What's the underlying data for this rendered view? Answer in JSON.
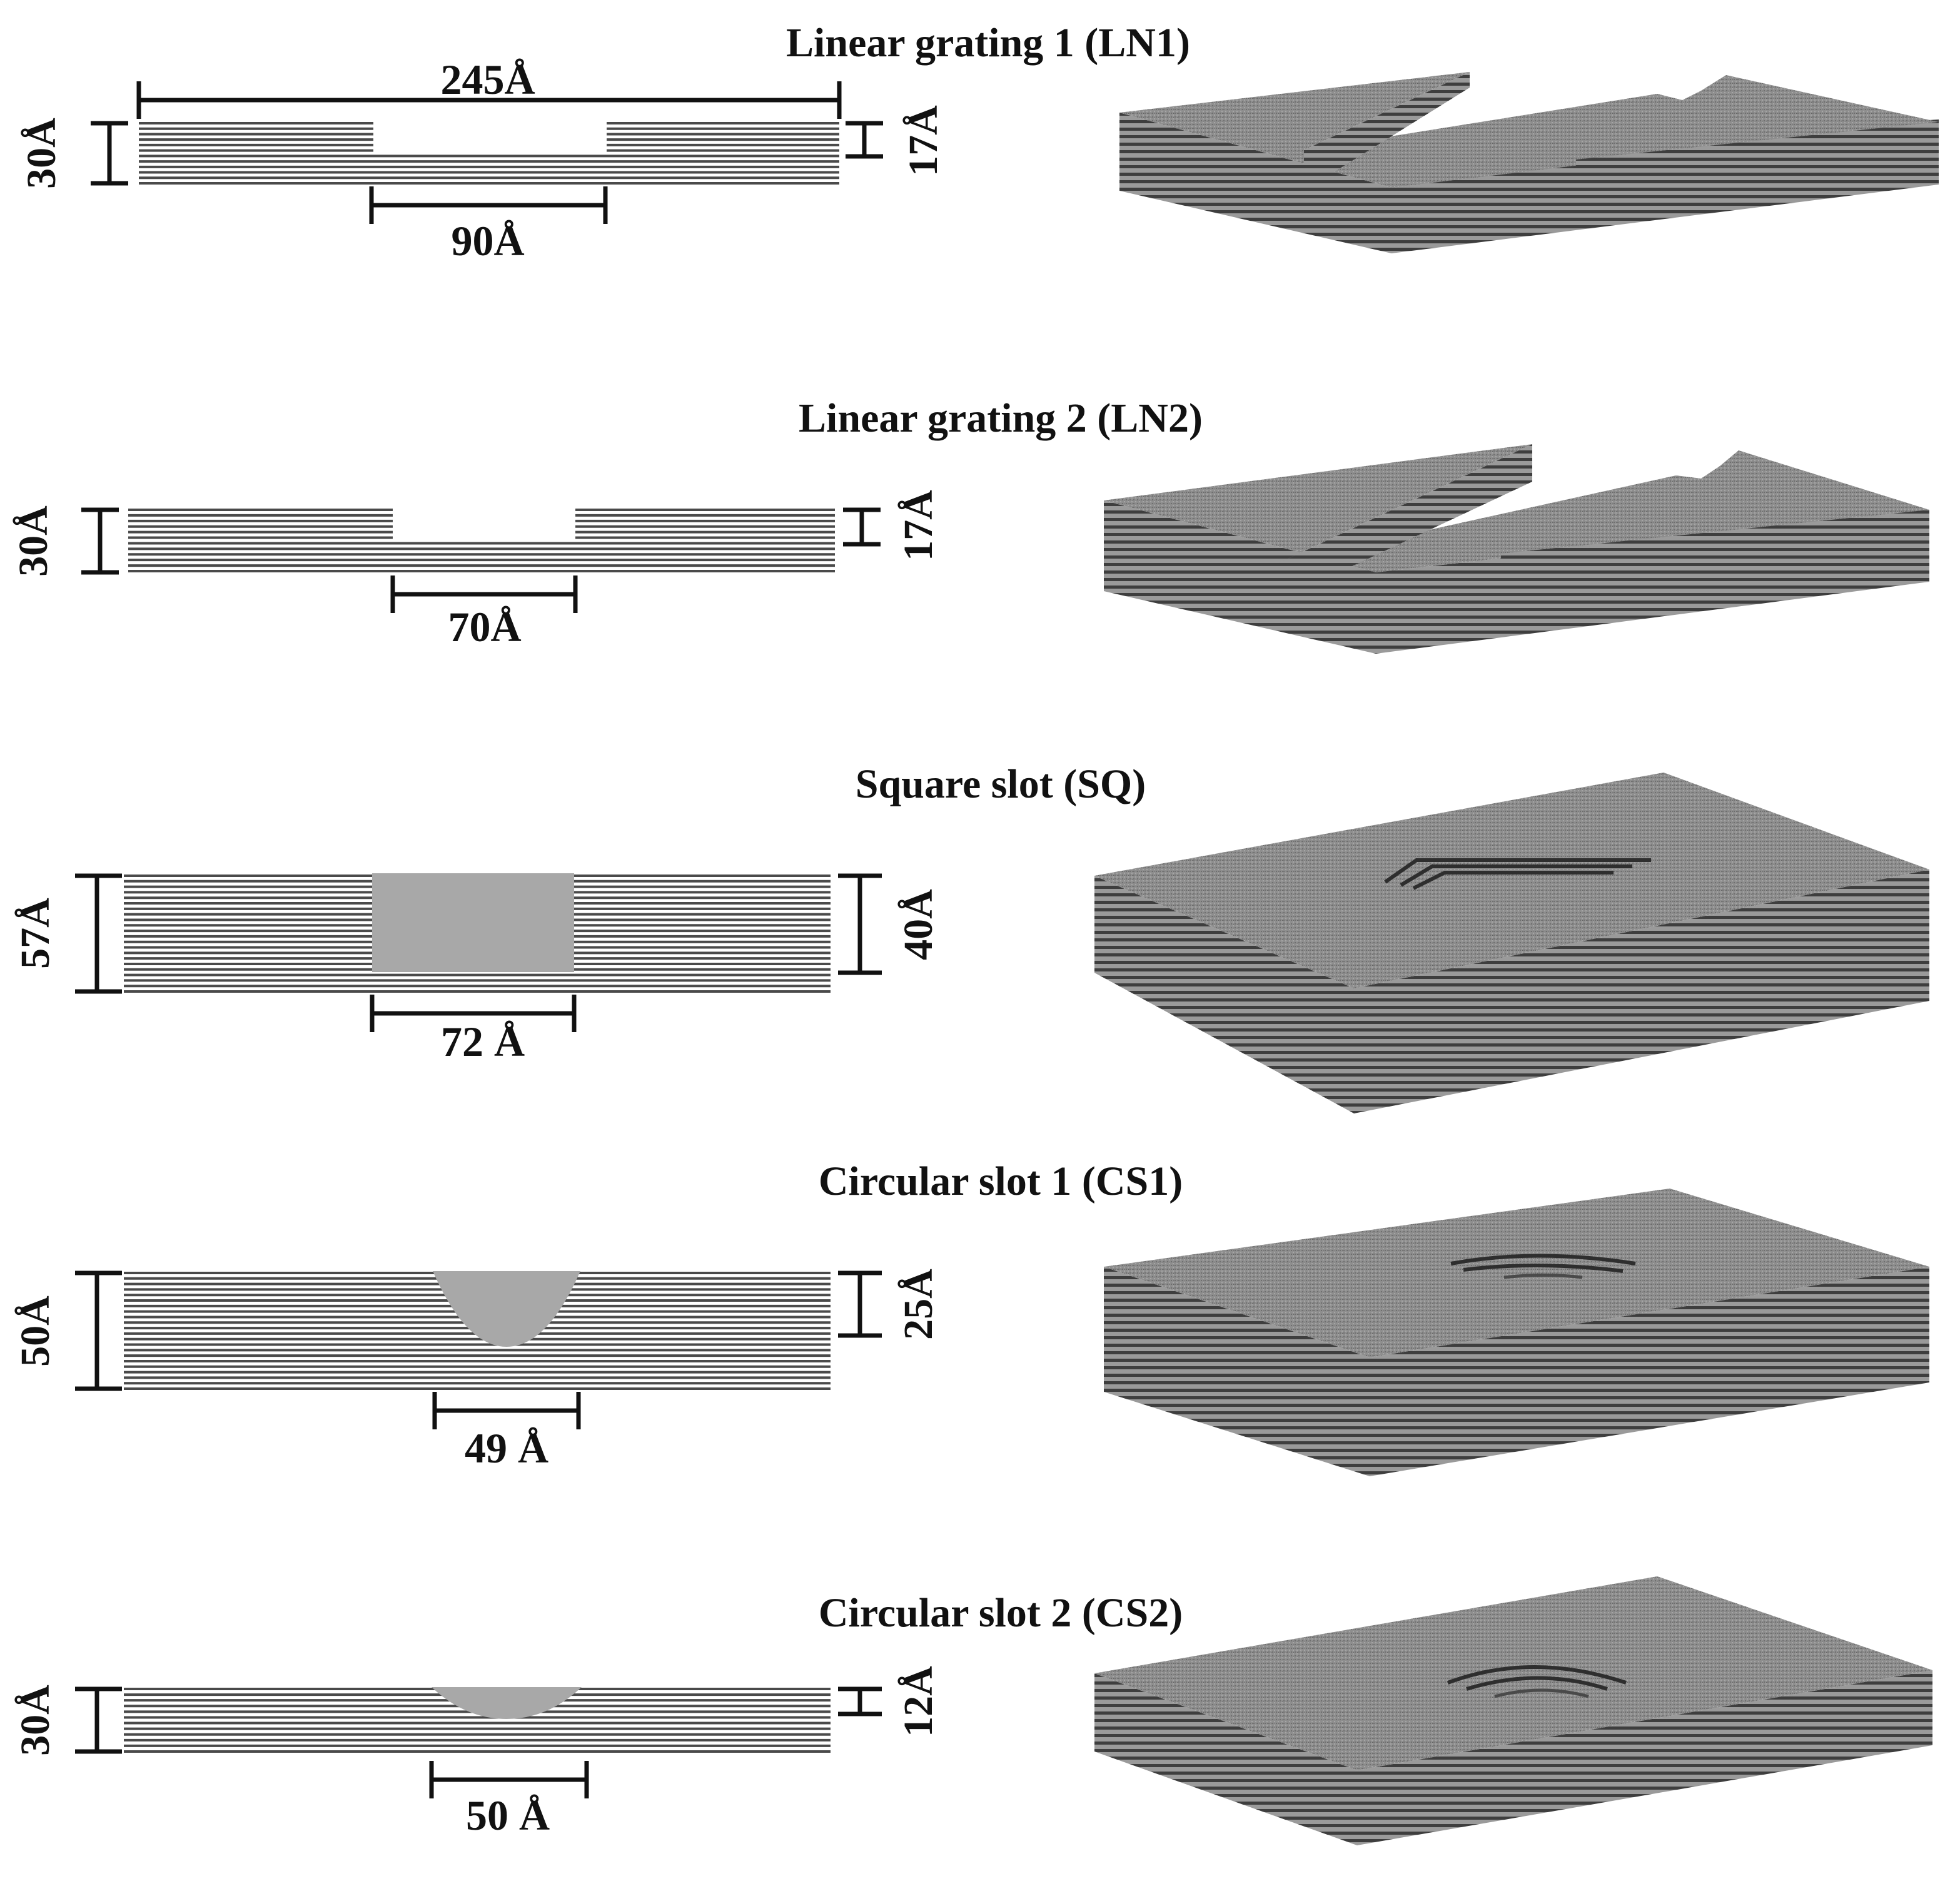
{
  "colors": {
    "layer": "#4a4a4a",
    "slot_fill": "#a8a8a8",
    "dim_line": "#111111",
    "surface_top": "#8b8b8b",
    "surface_edge": "#5a5a5a",
    "background": "#ffffff"
  },
  "panels": [
    {
      "id": "ln1",
      "title": "Linear grating 1 (LN1)",
      "shape": "rect-groove",
      "labels": {
        "total_depth": "30Å",
        "groove_depth": "17Å",
        "groove_width": "90Å",
        "total_length": "245Å"
      }
    },
    {
      "id": "ln2",
      "title": "Linear grating 2 (LN2)",
      "shape": "rect-groove",
      "labels": {
        "total_depth": "30Å",
        "groove_depth": "17Å",
        "groove_width": "70Å"
      }
    },
    {
      "id": "sq",
      "title": "Square slot (SQ)",
      "shape": "square-slot",
      "labels": {
        "total_depth": "57Å",
        "groove_depth": "40Å",
        "groove_width": "72 Å"
      }
    },
    {
      "id": "cs1",
      "title": "Circular slot 1 (CS1)",
      "shape": "circular-slot",
      "labels": {
        "total_depth": "50Å",
        "groove_depth": "25Å",
        "groove_width": "49 Å"
      }
    },
    {
      "id": "cs2",
      "title": "Circular slot 2 (CS2)",
      "shape": "circular-slot",
      "labels": {
        "total_depth": "30Å",
        "groove_depth": "12Å",
        "groove_width": "50 Å"
      }
    }
  ]
}
